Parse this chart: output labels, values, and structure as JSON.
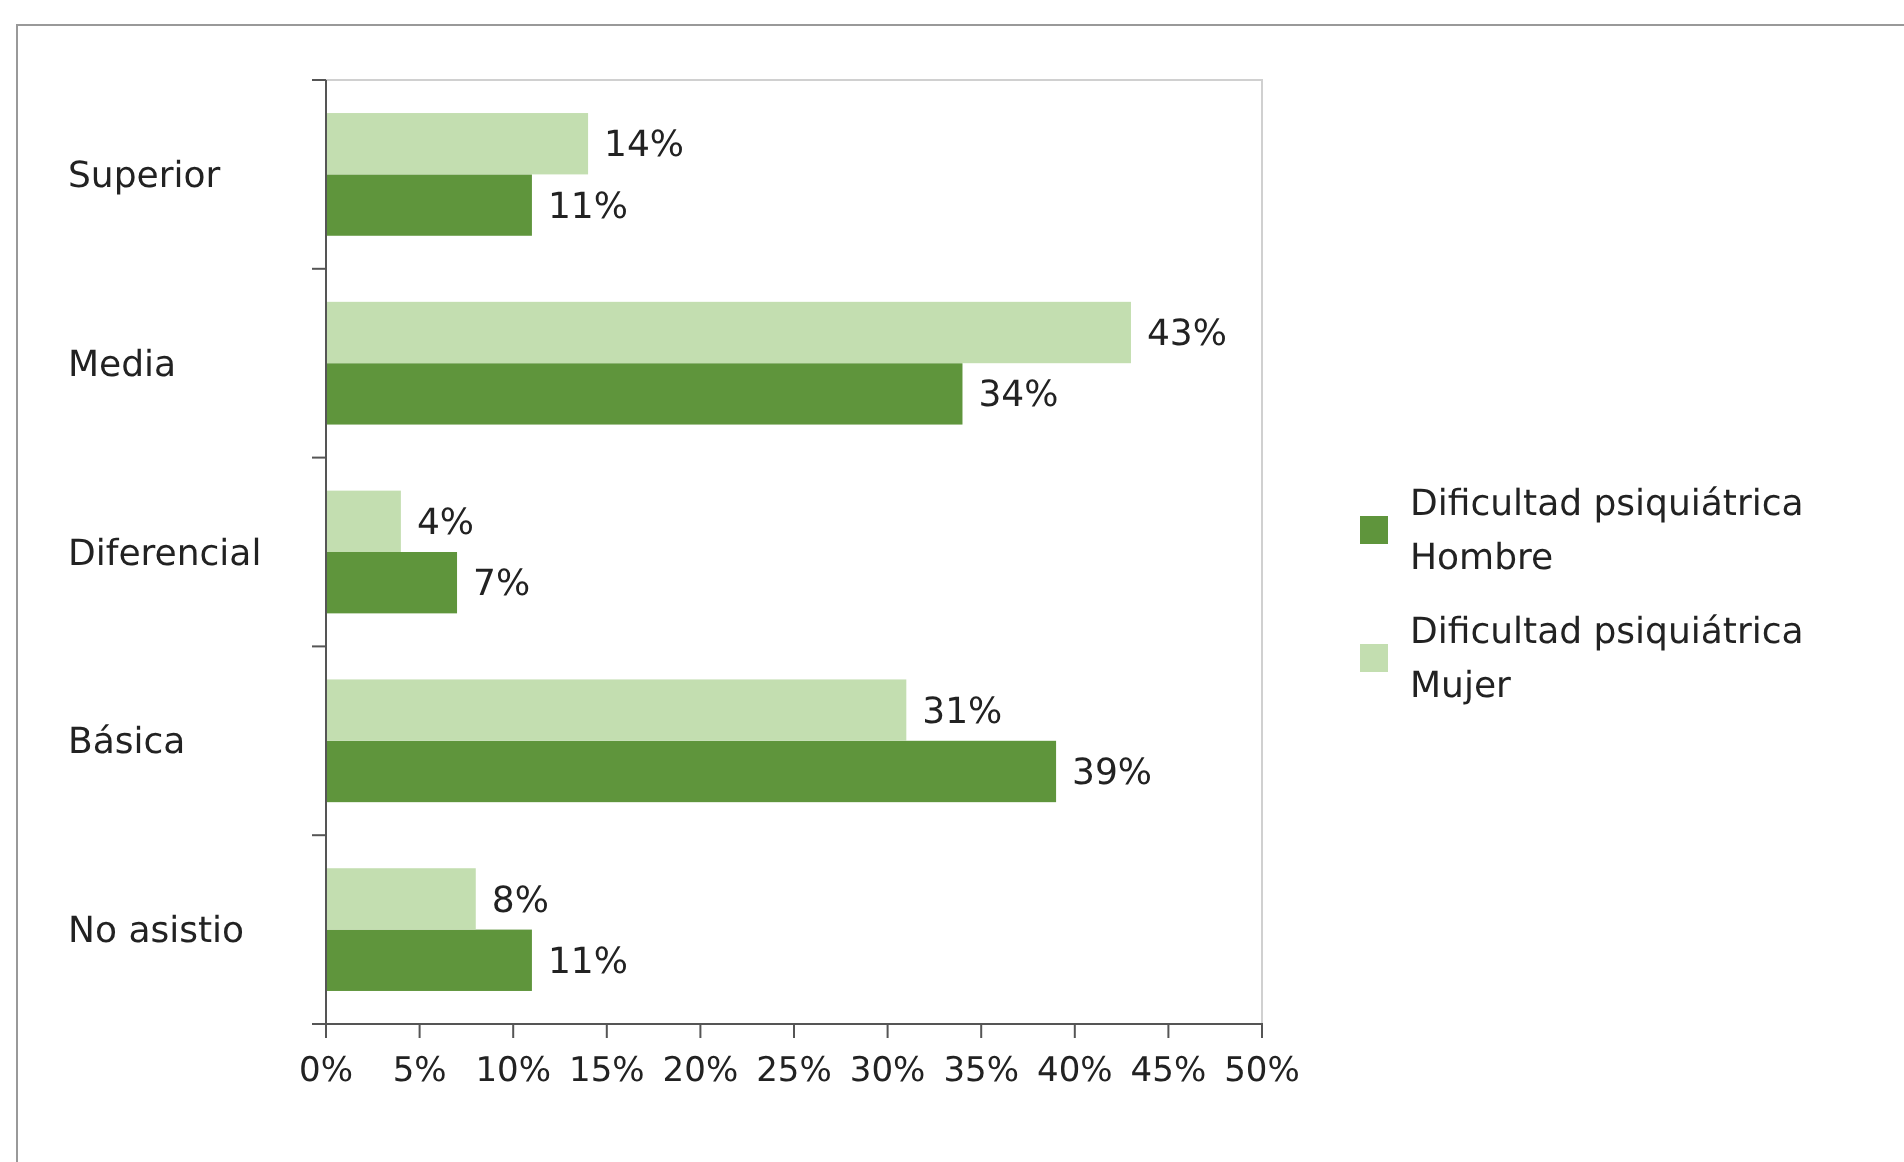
{
  "chart_data": {
    "type": "bar",
    "orientation": "horizontal",
    "categories": [
      "Superior",
      "Media",
      "Diferencial",
      "Básica",
      "No asistio"
    ],
    "series": [
      {
        "name": "Dificultad psiquiátrica Hombre",
        "color": "#5f953c",
        "values": [
          11,
          34,
          7,
          39,
          11
        ],
        "value_labels": [
          "11%",
          "34%",
          "7%",
          "39%",
          "11%"
        ]
      },
      {
        "name": "Dificultad psiquiátrica Mujer",
        "color": "#c3deb0",
        "values": [
          14,
          43,
          4,
          31,
          8
        ],
        "value_labels": [
          "14%",
          "43%",
          "4%",
          "31%",
          "8%"
        ]
      }
    ],
    "xlim": [
      0,
      50
    ],
    "xticks": [
      {
        "value": 0,
        "label": "0%"
      },
      {
        "value": 5,
        "label": "5%"
      },
      {
        "value": 10,
        "label": "10%"
      },
      {
        "value": 15,
        "label": "15%"
      },
      {
        "value": 20,
        "label": "20%"
      },
      {
        "value": 25,
        "label": "25%"
      },
      {
        "value": 30,
        "label": "30%"
      },
      {
        "value": 35,
        "label": "35%"
      },
      {
        "value": 40,
        "label": "40%"
      },
      {
        "value": 45,
        "label": "45%"
      },
      {
        "value": 50,
        "label": "50%"
      }
    ],
    "grid": false,
    "legend": "right"
  }
}
